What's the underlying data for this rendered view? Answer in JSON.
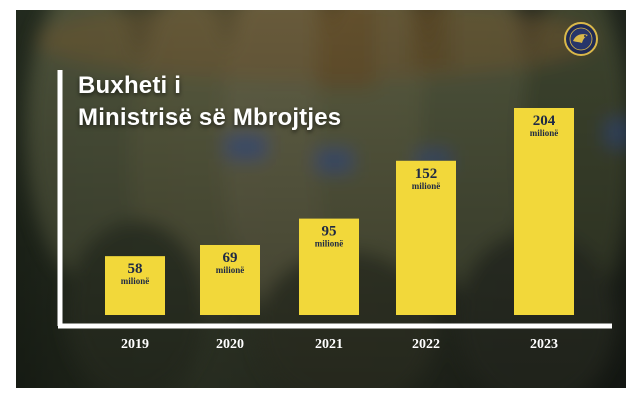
{
  "header": {
    "title_line1": "Buxheti i",
    "title_line2": "Ministrisë së Mbrojtjes"
  },
  "logo": {
    "icon": "eagle-emblem-icon"
  },
  "colors": {
    "bar": "#f2d83a",
    "value_text": "#1f2a44",
    "axis": "#ffffff",
    "tick_text": "#ffffff",
    "background": "#2c3324"
  },
  "chart_data": {
    "type": "bar",
    "title": "Buxheti i Ministrisë së Mbrojtjes",
    "categories": [
      "2019",
      "2020",
      "2021",
      "2022",
      "2023"
    ],
    "values": [
      58,
      69,
      95,
      152,
      204
    ],
    "value_labels": [
      "58",
      "69",
      "95",
      "152",
      "204"
    ],
    "value_unit": "milionë",
    "ylim": [
      0,
      204
    ],
    "grid": false,
    "legend": "none"
  }
}
